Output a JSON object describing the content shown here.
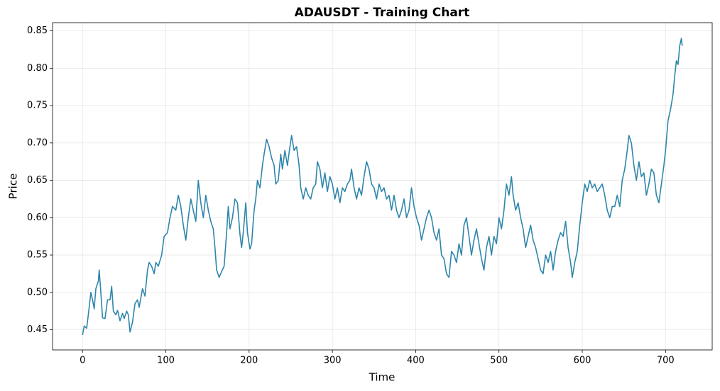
{
  "chart_data": {
    "type": "line",
    "title": "ADAUSDT - Training Chart",
    "x_label": "Time",
    "y_label": "Price",
    "xlim": [
      -36,
      756
    ],
    "ylim": [
      0.423,
      0.861
    ],
    "xticks": [
      0,
      100,
      200,
      300,
      400,
      500,
      600,
      700
    ],
    "yticks": [
      0.45,
      {
        "value": 0.5,
        "label": "0.50"
      },
      0.55,
      {
        "value": 0.6,
        "label": "0.60"
      },
      0.65,
      {
        "value": 0.7,
        "label": "0.70"
      },
      0.75,
      {
        "value": 0.8,
        "label": "0.80"
      },
      0.85
    ],
    "grid": true,
    "x": [
      0,
      2,
      5,
      8,
      10,
      12,
      14,
      16,
      19,
      20,
      22,
      24,
      27,
      30,
      33,
      35,
      37,
      40,
      42,
      45,
      48,
      50,
      53,
      55,
      57,
      60,
      63,
      66,
      68,
      72,
      75,
      78,
      80,
      83,
      86,
      88,
      91,
      95,
      98,
      102,
      105,
      108,
      112,
      115,
      118,
      121,
      124,
      127,
      130,
      133,
      136,
      139,
      142,
      145,
      148,
      151,
      154,
      157,
      159,
      161,
      164,
      167,
      170,
      173,
      175,
      177,
      180,
      183,
      186,
      189,
      191,
      193,
      196,
      198,
      201,
      203,
      206,
      208,
      210,
      213,
      216,
      218,
      221,
      224,
      227,
      230,
      232,
      235,
      238,
      240,
      243,
      246,
      249,
      251,
      254,
      257,
      260,
      262,
      265,
      268,
      271,
      274,
      277,
      280,
      282,
      285,
      288,
      291,
      294,
      297,
      300,
      303,
      306,
      309,
      312,
      315,
      318,
      321,
      323,
      326,
      329,
      332,
      335,
      338,
      341,
      344,
      347,
      350,
      353,
      356,
      359,
      362,
      365,
      368,
      371,
      374,
      377,
      380,
      383,
      386,
      389,
      392,
      395,
      398,
      401,
      404,
      407,
      410,
      413,
      416,
      419,
      422,
      425,
      428,
      431,
      434,
      437,
      440,
      443,
      446,
      449,
      452,
      455,
      458,
      461,
      464,
      467,
      470,
      473,
      476,
      479,
      482,
      485,
      488,
      491,
      494,
      497,
      500,
      503,
      506,
      509,
      512,
      515,
      517,
      520,
      523,
      526,
      529,
      532,
      535,
      538,
      541,
      544,
      547,
      550,
      553,
      556,
      559,
      562,
      565,
      568,
      571,
      574,
      577,
      580,
      583,
      586,
      588,
      591,
      594,
      597,
      600,
      603,
      606,
      609,
      612,
      615,
      618,
      621,
      624,
      627,
      630,
      633,
      636,
      639,
      642,
      645,
      648,
      651,
      654,
      656,
      659,
      662,
      665,
      668,
      671,
      674,
      677,
      680,
      683,
      686,
      689,
      692,
      695,
      698,
      700,
      703,
      706,
      709,
      711,
      713,
      715,
      717,
      719,
      720
    ],
    "series": [
      {
        "color": "#2e86ab",
        "values": [
          0.443,
          0.455,
          0.452,
          0.48,
          0.5,
          0.49,
          0.478,
          0.505,
          0.515,
          0.53,
          0.5,
          0.466,
          0.465,
          0.49,
          0.49,
          0.508,
          0.475,
          0.47,
          0.476,
          0.462,
          0.472,
          0.465,
          0.475,
          0.47,
          0.447,
          0.46,
          0.485,
          0.49,
          0.48,
          0.505,
          0.495,
          0.53,
          0.54,
          0.535,
          0.525,
          0.54,
          0.535,
          0.55,
          0.575,
          0.58,
          0.6,
          0.615,
          0.61,
          0.63,
          0.615,
          0.59,
          0.57,
          0.6,
          0.625,
          0.61,
          0.595,
          0.65,
          0.62,
          0.6,
          0.63,
          0.61,
          0.595,
          0.585,
          0.56,
          0.53,
          0.52,
          0.528,
          0.535,
          0.58,
          0.615,
          0.585,
          0.6,
          0.625,
          0.62,
          0.578,
          0.56,
          0.58,
          0.62,
          0.58,
          0.558,
          0.565,
          0.61,
          0.625,
          0.65,
          0.64,
          0.67,
          0.685,
          0.705,
          0.695,
          0.68,
          0.67,
          0.645,
          0.65,
          0.685,
          0.665,
          0.69,
          0.67,
          0.695,
          0.71,
          0.69,
          0.695,
          0.67,
          0.64,
          0.625,
          0.64,
          0.63,
          0.625,
          0.64,
          0.645,
          0.675,
          0.665,
          0.64,
          0.66,
          0.635,
          0.655,
          0.645,
          0.625,
          0.64,
          0.62,
          0.64,
          0.635,
          0.645,
          0.65,
          0.665,
          0.64,
          0.625,
          0.64,
          0.63,
          0.655,
          0.675,
          0.665,
          0.645,
          0.64,
          0.625,
          0.645,
          0.635,
          0.64,
          0.625,
          0.63,
          0.61,
          0.63,
          0.61,
          0.6,
          0.61,
          0.625,
          0.6,
          0.61,
          0.64,
          0.615,
          0.6,
          0.59,
          0.57,
          0.585,
          0.6,
          0.61,
          0.6,
          0.58,
          0.57,
          0.585,
          0.55,
          0.545,
          0.525,
          0.52,
          0.555,
          0.55,
          0.54,
          0.565,
          0.55,
          0.59,
          0.6,
          0.575,
          0.55,
          0.57,
          0.585,
          0.565,
          0.545,
          0.53,
          0.56,
          0.575,
          0.55,
          0.575,
          0.565,
          0.6,
          0.585,
          0.61,
          0.645,
          0.63,
          0.655,
          0.63,
          0.61,
          0.62,
          0.6,
          0.585,
          0.56,
          0.575,
          0.59,
          0.57,
          0.56,
          0.545,
          0.53,
          0.525,
          0.55,
          0.54,
          0.555,
          0.53,
          0.555,
          0.57,
          0.58,
          0.575,
          0.595,
          0.56,
          0.54,
          0.52,
          0.54,
          0.555,
          0.59,
          0.62,
          0.645,
          0.635,
          0.65,
          0.64,
          0.645,
          0.635,
          0.64,
          0.645,
          0.63,
          0.61,
          0.6,
          0.615,
          0.615,
          0.63,
          0.615,
          0.65,
          0.665,
          0.69,
          0.71,
          0.7,
          0.67,
          0.65,
          0.675,
          0.655,
          0.66,
          0.63,
          0.645,
          0.665,
          0.66,
          0.63,
          0.62,
          0.645,
          0.67,
          0.69,
          0.73,
          0.745,
          0.765,
          0.79,
          0.81,
          0.805,
          0.83,
          0.84,
          0.83
        ]
      }
    ]
  }
}
